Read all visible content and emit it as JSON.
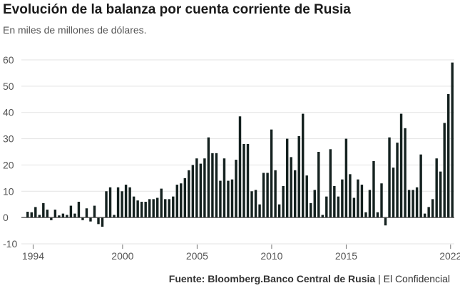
{
  "title": "Evolución de la balanza por cuenta corriente de Rusia",
  "subtitle": "En miles de millones de dólares.",
  "footer": {
    "label": "Fuente:",
    "source": "Bloomberg.Banco Central de Rusia",
    "separator": "|",
    "publisher": "El Confidencial"
  },
  "colors": {
    "bar": "#14211f",
    "grid": "#e3e3e3",
    "zero_line": "#444444",
    "tick_text": "#555555"
  },
  "chart_data": {
    "type": "bar",
    "title": "Evolución de la balanza por cuenta corriente de Rusia",
    "subtitle": "En miles de millones de dólares.",
    "xlabel": "",
    "ylabel": "",
    "ylim": [
      -10,
      60
    ],
    "yticks": [
      -10,
      0,
      10,
      20,
      30,
      40,
      50,
      60
    ],
    "xticks": [
      1994,
      2000,
      2005,
      2010,
      2015,
      2022
    ],
    "grid": true,
    "legend": "none",
    "x_start": 1993.5,
    "x_end": 2022.25,
    "series": [
      {
        "values": [
          2.2,
          2.0,
          4.0,
          1.0,
          5.5,
          3.0,
          -1.0,
          3.0,
          0.8,
          1.5,
          1.0,
          4.5,
          1.5,
          6.0,
          -1.0,
          3.5,
          -1.5,
          4.5,
          -2.5,
          -3.5,
          10.0,
          11.5,
          1.0,
          11.5,
          10.0,
          12.5,
          11.5,
          8.0,
          6.5,
          6.0,
          6.0,
          7.0,
          7.0,
          7.5,
          11.0,
          7.0,
          7.0,
          8.0,
          12.5,
          13.0,
          15.0,
          18.0,
          20.0,
          22.5,
          20.5,
          22.5,
          30.5,
          24.5,
          24.5,
          14.0,
          22.5,
          14.0,
          14.5,
          22.0,
          38.5,
          28.0,
          28.0,
          10.0,
          10.5,
          5.0,
          17.0,
          17.0,
          33.5,
          18.0,
          5.0,
          12.0,
          30.0,
          23.0,
          18.0,
          31.0,
          39.5,
          16.0,
          5.5,
          10.5,
          25.0,
          1.0,
          8.0,
          26.0,
          12.0,
          8.0,
          14.5,
          30.0,
          16.5,
          7.5,
          14.5,
          12.5,
          2.0,
          10.5,
          21.5,
          2.0,
          13.0,
          -3.0,
          30.5,
          19.0,
          28.5,
          39.5,
          34.0,
          10.5,
          10.5,
          11.5,
          24.0,
          1.5,
          4.0,
          7.0,
          22.5,
          17.5,
          36.0,
          47.0,
          59.0
        ]
      }
    ]
  }
}
